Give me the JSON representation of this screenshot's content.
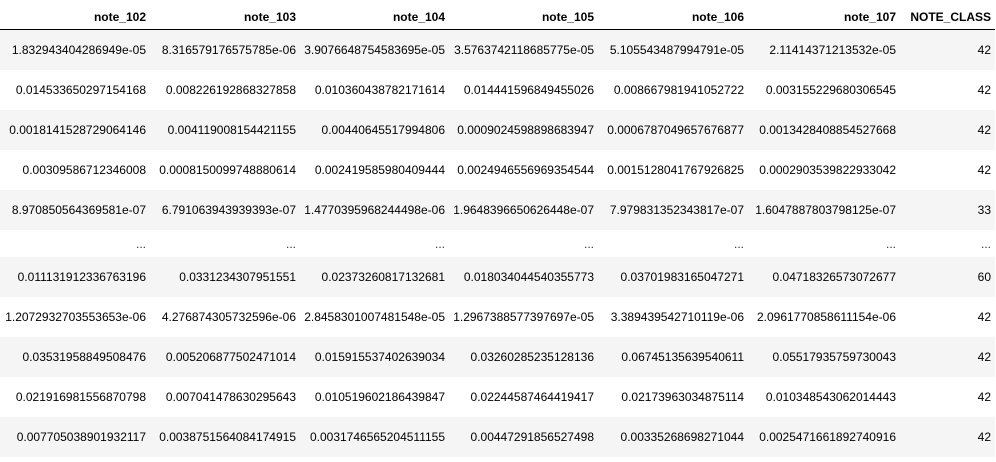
{
  "table": {
    "columns": [
      "note_102",
      "note_103",
      "note_104",
      "note_105",
      "note_106",
      "note_107",
      "NOTE_CLASS"
    ],
    "rows": [
      [
        "1.832943404286949e-05",
        "8.316579176575785e-06",
        "3.9076648754583695e-05",
        "3.5763742118685775e-05",
        "5.105543487994791e-05",
        "2.11414371213532e-05",
        "42"
      ],
      [
        "0.014533650297154168",
        "0.008226192868327858",
        "0.010360438782171614",
        "0.014441596849455026",
        "0.008667981941052722",
        "0.003155229680306545",
        "42"
      ],
      [
        "0.0018141528729064146",
        "0.004119008154421155",
        "0.00440645517994806",
        "0.0009024598898683947",
        "0.0006787049657676877",
        "0.0013428408854527668",
        "42"
      ],
      [
        "0.00309586712346008",
        "0.0008150099748880614",
        "0.002419585980409444",
        "0.0024946556969354544",
        "0.0015128041767926825",
        "0.0002903539822933042",
        "42"
      ],
      [
        "8.970850564369581e-07",
        "6.791063943939393e-07",
        "1.4770395968244498e-06",
        "1.9648396650626448e-07",
        "7.979831352343817e-07",
        "1.6047887803798125e-07",
        "33"
      ],
      [
        "...",
        "...",
        "...",
        "...",
        "...",
        "...",
        "..."
      ],
      [
        "0.011131912336763196",
        "0.0331234307951551",
        "0.02373260817132681",
        "0.018034044540355773",
        "0.03701983165047271",
        "0.04718326573072677",
        "60"
      ],
      [
        "1.2072932703553653e-06",
        "4.276874305732596e-06",
        "2.8458301007481548e-05",
        "1.2967388577397697e-05",
        "3.389439542710119e-06",
        "2.0961770858611154e-06",
        "42"
      ],
      [
        "0.03531958849508476",
        "0.005206877502471014",
        "0.015915537402639034",
        "0.03260285235128136",
        "0.06745135639540611",
        "0.05517935759730043",
        "42"
      ],
      [
        "0.021916981556870798",
        "0.007041478630295643",
        "0.010519602186439847",
        "0.02244587464419417",
        "0.02173963034875114",
        "0.010348543062014443",
        "42"
      ],
      [
        "0.007705038901932117",
        "0.0038751564084174915",
        "0.0031746565204511155",
        "0.00447291856527498",
        "0.00335268698271044",
        "0.0025471661892740916",
        "42"
      ]
    ]
  }
}
